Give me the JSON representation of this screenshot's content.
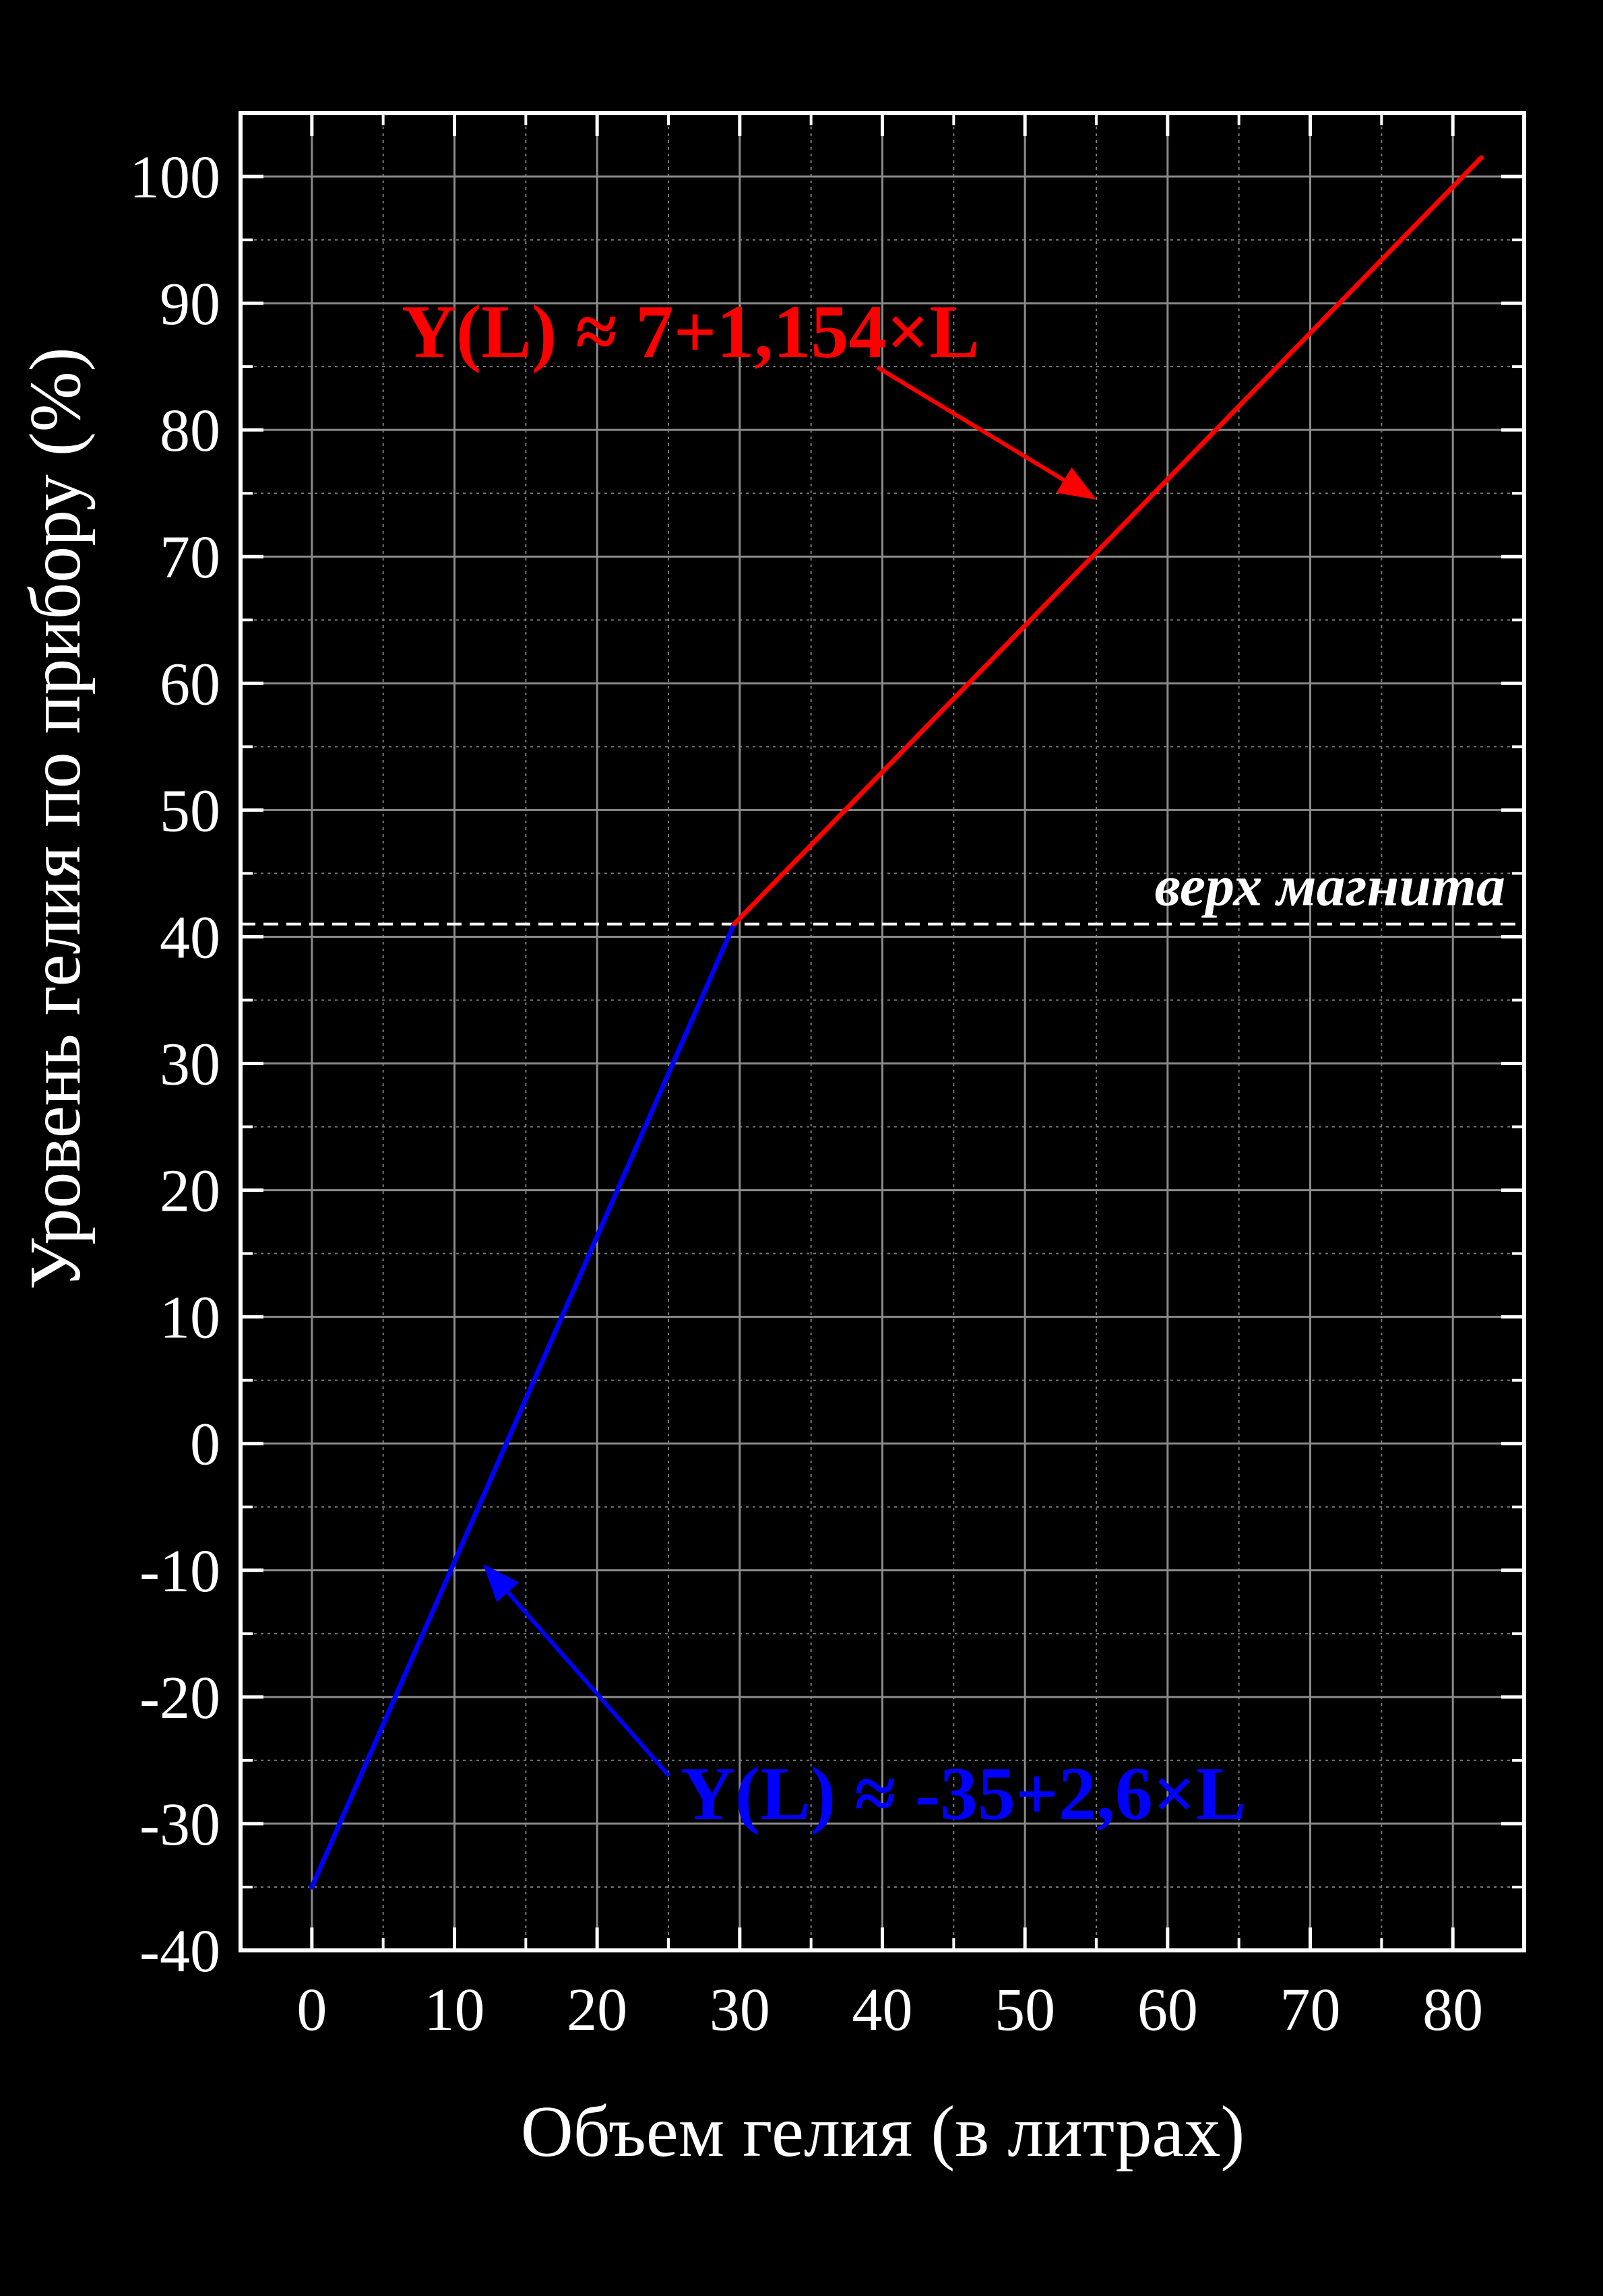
{
  "chart_data": {
    "type": "line",
    "xlabel": "Объем гелия (в литрах)",
    "ylabel": "Уровень гелия по прибору (%)",
    "xlim": [
      -5,
      85
    ],
    "ylim": [
      -40,
      105
    ],
    "x_ticks": [
      0,
      10,
      20,
      30,
      40,
      50,
      60,
      70,
      80
    ],
    "y_ticks": [
      -40,
      -30,
      -20,
      -10,
      0,
      10,
      20,
      30,
      40,
      50,
      60,
      70,
      80,
      90,
      100
    ],
    "x_tick_labels": [
      "0",
      "10",
      "20",
      "30",
      "40",
      "50",
      "60",
      "70",
      "80"
    ],
    "y_tick_labels": [
      "-40",
      "-30",
      "-20",
      "-10",
      "0",
      "10",
      "20",
      "30",
      "40",
      "50",
      "60",
      "70",
      "80",
      "90",
      "100"
    ],
    "grid": true,
    "series": [
      {
        "color": "#0000ff",
        "x": [
          0,
          29.6
        ],
        "y": [
          -35,
          41
        ]
      },
      {
        "color": "#ff0000",
        "x": [
          29.6,
          82
        ],
        "y": [
          41,
          101.5
        ]
      }
    ],
    "reference_line": {
      "y": 41,
      "label": "верх магнита",
      "color": "#ffffff"
    },
    "annotations": [
      {
        "text": "Y(L) ≈ 7+1,154×L",
        "color": "#ff0000",
        "points_to": [
          55,
          74.5
        ]
      },
      {
        "text": "Y(L) ≈ -35+2,6×L",
        "color": "#0000ff",
        "points_to": [
          12,
          -9.5
        ]
      }
    ]
  }
}
